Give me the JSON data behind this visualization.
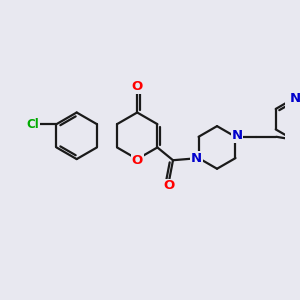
{
  "bg_color": "#e8e8f0",
  "bond_color": "#1a1a1a",
  "bond_width": 1.6,
  "atom_colors": {
    "O": "#ff0000",
    "N": "#0000cc",
    "Cl": "#00aa00",
    "C": "#1a1a1a"
  },
  "font_size": 8.5
}
